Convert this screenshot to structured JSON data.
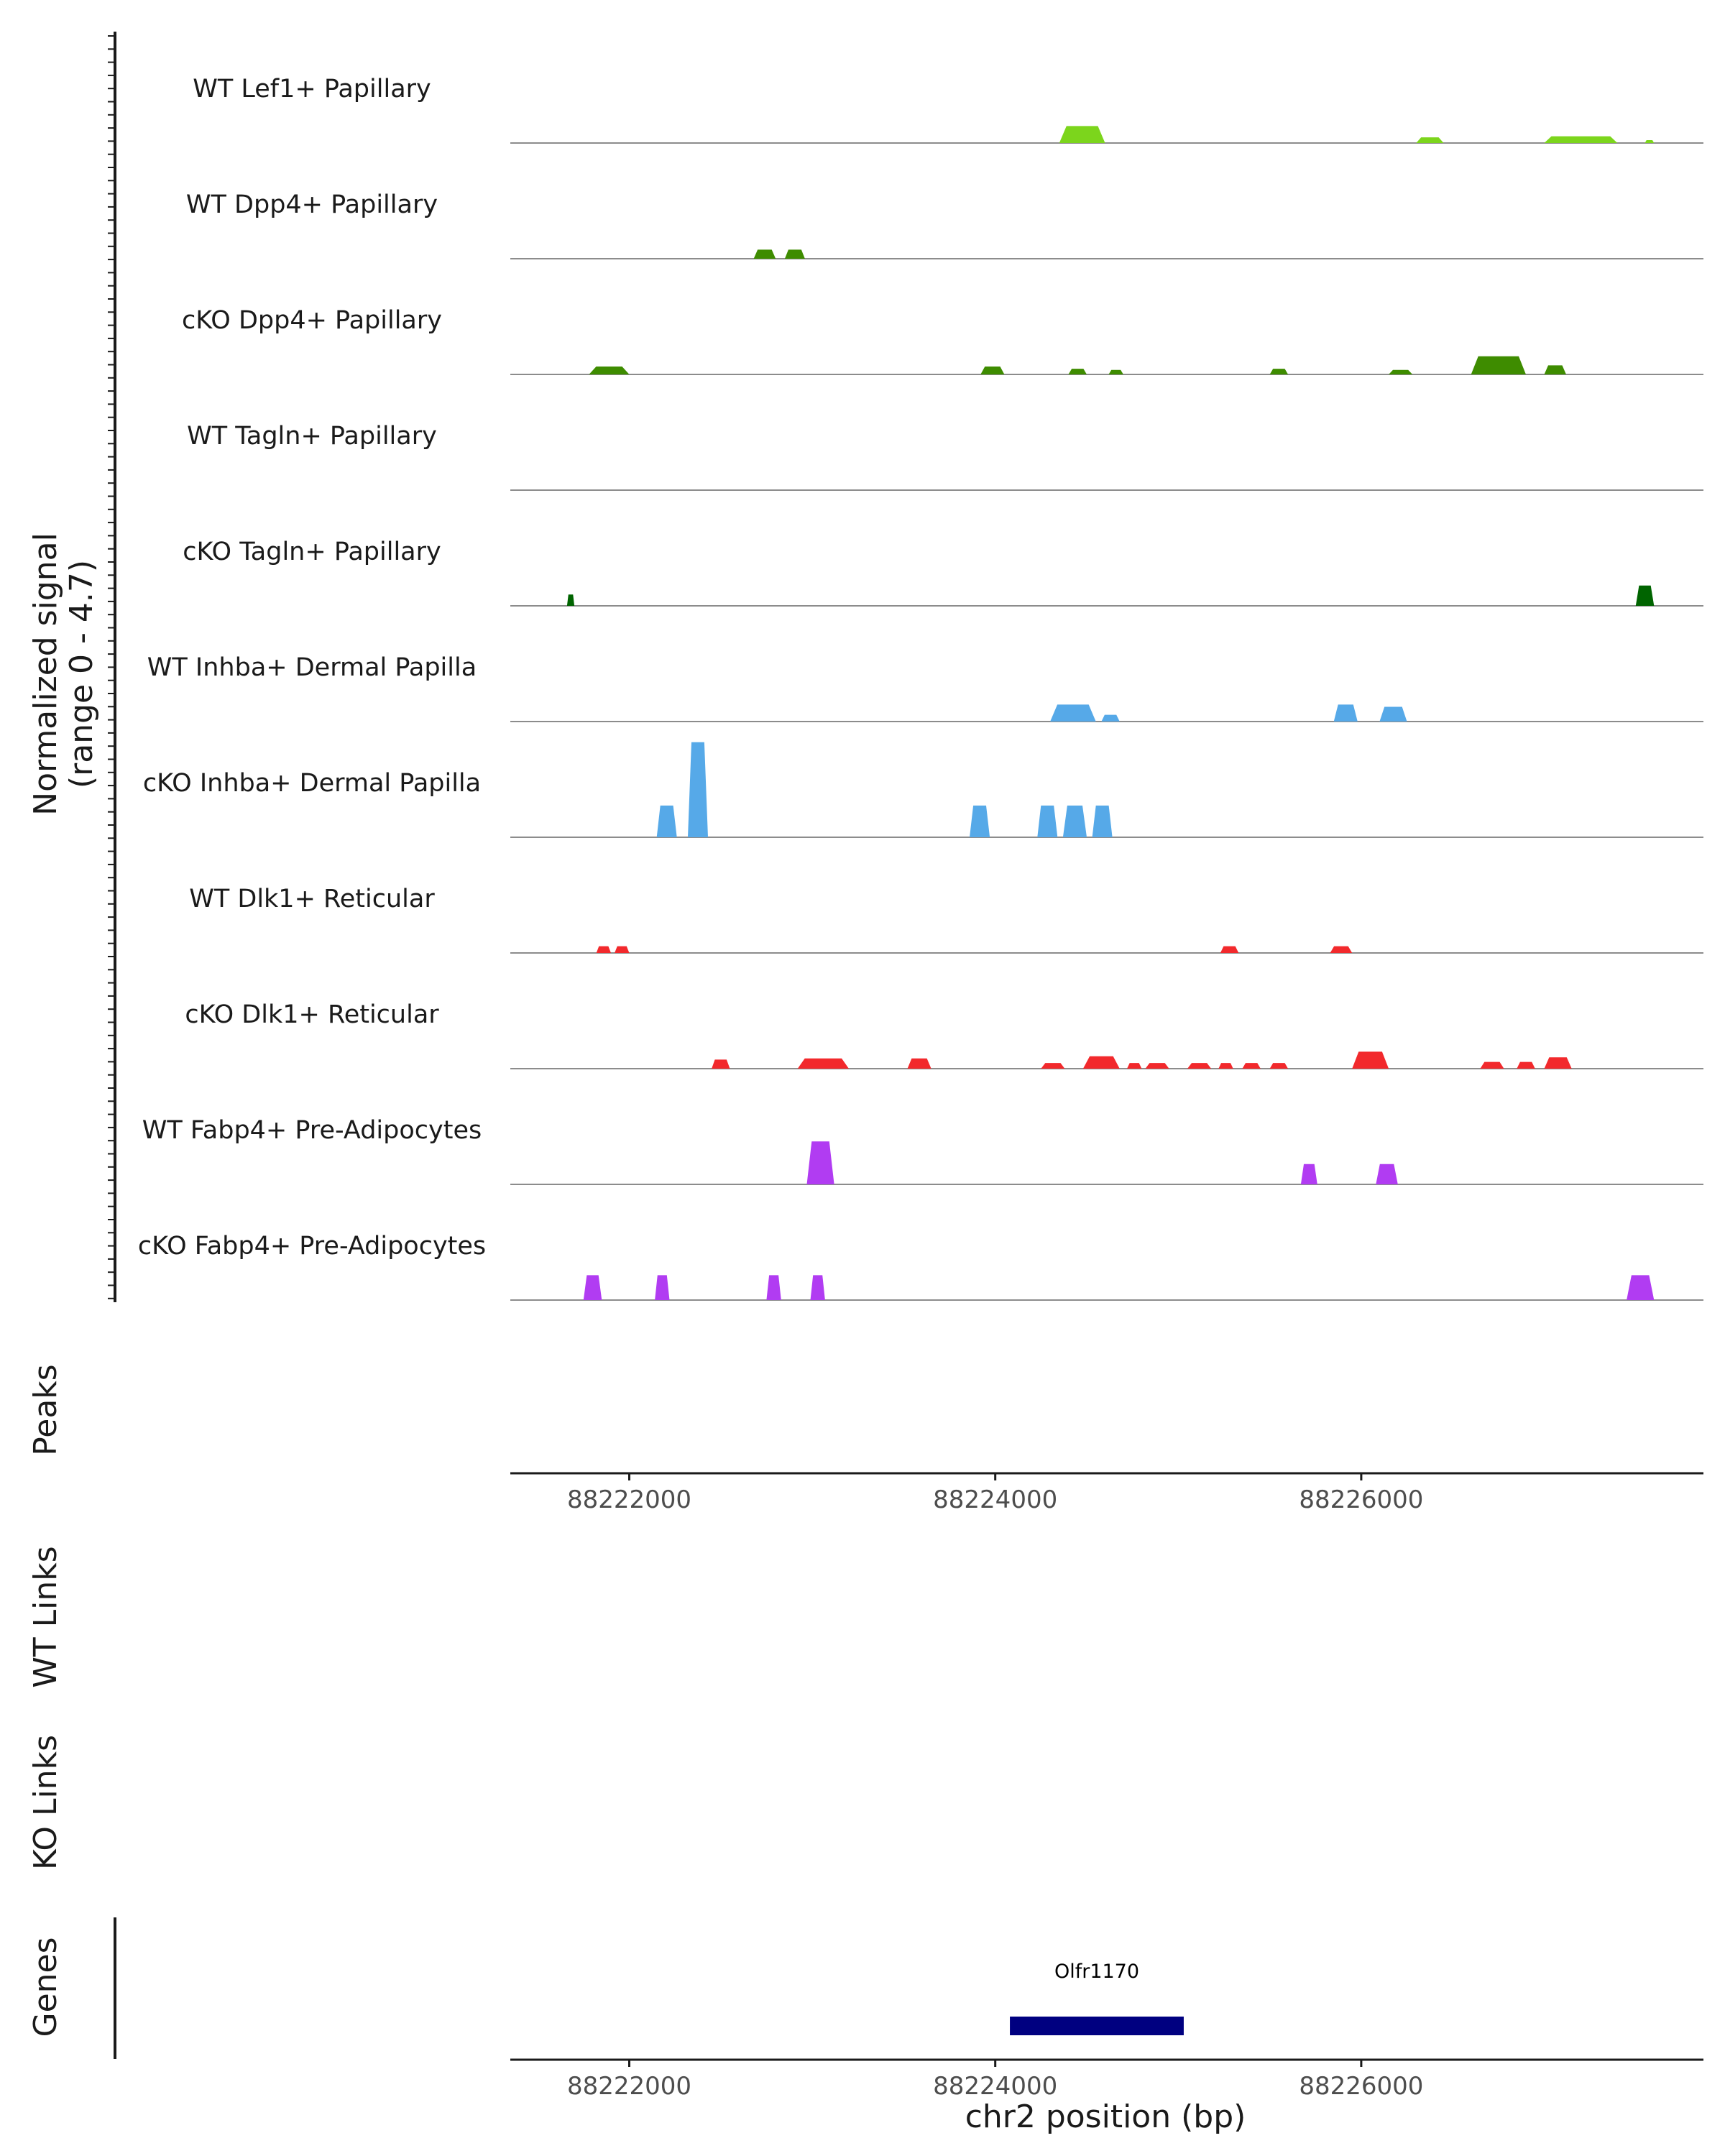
{
  "chart_data": {
    "type": "area",
    "chromosome": "chr2",
    "xlim": [
      88221350,
      88227870
    ],
    "ylim": [
      0,
      4.7
    ],
    "signal_axis_label": [
      "Normalized signal",
      "(range 0 - 4.7)"
    ],
    "x_ticks": [
      88222000,
      88224000,
      88226000
    ],
    "x_tick_labels": [
      "88222000",
      "88224000",
      "88226000"
    ],
    "xlabel": "chr2 position (bp)",
    "tracks": [
      {
        "name": "WT Lef1+ Papillary",
        "color": "#7cd51c",
        "peaks": [
          {
            "start": 88224350,
            "end": 88224600,
            "height": 0.75
          },
          {
            "start": 88226300,
            "end": 88226450,
            "height": 0.25
          },
          {
            "start": 88227000,
            "end": 88227400,
            "height": 0.3
          },
          {
            "start": 88227550,
            "end": 88227600,
            "height": 0.1
          }
        ]
      },
      {
        "name": "WT Dpp4+ Papillary",
        "color": "#3e8c00",
        "peaks": [
          {
            "start": 88222680,
            "end": 88222800,
            "height": 0.4
          },
          {
            "start": 88222850,
            "end": 88222960,
            "height": 0.4
          }
        ]
      },
      {
        "name": "cKO Dpp4+ Papillary",
        "color": "#3e8c00",
        "peaks": [
          {
            "start": 88221780,
            "end": 88222000,
            "height": 0.35
          },
          {
            "start": 88223920,
            "end": 88224050,
            "height": 0.35
          },
          {
            "start": 88224400,
            "end": 88224500,
            "height": 0.25
          },
          {
            "start": 88224620,
            "end": 88224700,
            "height": 0.2
          },
          {
            "start": 88225500,
            "end": 88225600,
            "height": 0.25
          },
          {
            "start": 88226150,
            "end": 88226280,
            "height": 0.2
          },
          {
            "start": 88226600,
            "end": 88226900,
            "height": 0.8
          },
          {
            "start": 88227000,
            "end": 88227120,
            "height": 0.4
          }
        ]
      },
      {
        "name": "WT Tagln+ Papillary",
        "color": "#006400",
        "peaks": []
      },
      {
        "name": "cKO Tagln+ Papillary",
        "color": "#006400",
        "peaks": [
          {
            "start": 88221660,
            "end": 88221700,
            "height": 0.5
          },
          {
            "start": 88227500,
            "end": 88227600,
            "height": 0.9
          }
        ]
      },
      {
        "name": "WT Inhba+ Dermal Papilla",
        "color": "#56a9e8",
        "peaks": [
          {
            "start": 88224300,
            "end": 88224550,
            "height": 0.75
          },
          {
            "start": 88224580,
            "end": 88224680,
            "height": 0.3
          },
          {
            "start": 88225850,
            "end": 88225980,
            "height": 0.75
          },
          {
            "start": 88226100,
            "end": 88226250,
            "height": 0.65
          }
        ]
      },
      {
        "name": "cKO Inhba+ Dermal Papilla",
        "color": "#56a9e8",
        "peaks": [
          {
            "start": 88222150,
            "end": 88222260,
            "height": 1.4
          },
          {
            "start": 88222320,
            "end": 88222430,
            "height": 4.2
          },
          {
            "start": 88223860,
            "end": 88223970,
            "height": 1.4
          },
          {
            "start": 88224230,
            "end": 88224340,
            "height": 1.4
          },
          {
            "start": 88224370,
            "end": 88224500,
            "height": 1.4
          },
          {
            "start": 88224530,
            "end": 88224640,
            "height": 1.4
          }
        ]
      },
      {
        "name": "WT Dlk1+ Reticular",
        "color": "#f2292c",
        "peaks": [
          {
            "start": 88221820,
            "end": 88221900,
            "height": 0.3
          },
          {
            "start": 88221920,
            "end": 88222000,
            "height": 0.3
          },
          {
            "start": 88225230,
            "end": 88225330,
            "height": 0.3
          },
          {
            "start": 88225830,
            "end": 88225950,
            "height": 0.3
          }
        ]
      },
      {
        "name": "cKO Dlk1+ Reticular",
        "color": "#f2292c",
        "peaks": [
          {
            "start": 88222450,
            "end": 88222550,
            "height": 0.4
          },
          {
            "start": 88222920,
            "end": 88223200,
            "height": 0.45
          },
          {
            "start": 88223520,
            "end": 88223650,
            "height": 0.45
          },
          {
            "start": 88224250,
            "end": 88224380,
            "height": 0.25
          },
          {
            "start": 88224480,
            "end": 88224680,
            "height": 0.55
          },
          {
            "start": 88224720,
            "end": 88224800,
            "height": 0.25
          },
          {
            "start": 88224820,
            "end": 88224950,
            "height": 0.25
          },
          {
            "start": 88225050,
            "end": 88225180,
            "height": 0.25
          },
          {
            "start": 88225220,
            "end": 88225300,
            "height": 0.25
          },
          {
            "start": 88225350,
            "end": 88225450,
            "height": 0.25
          },
          {
            "start": 88225500,
            "end": 88225600,
            "height": 0.25
          },
          {
            "start": 88225950,
            "end": 88226150,
            "height": 0.75
          },
          {
            "start": 88226650,
            "end": 88226780,
            "height": 0.3
          },
          {
            "start": 88226850,
            "end": 88226950,
            "height": 0.3
          },
          {
            "start": 88227000,
            "end": 88227150,
            "height": 0.5
          }
        ]
      },
      {
        "name": "WT Fabp4+ Pre-Adipocytes",
        "color": "#b13cf2",
        "peaks": [
          {
            "start": 88222970,
            "end": 88223120,
            "height": 1.9
          },
          {
            "start": 88225670,
            "end": 88225760,
            "height": 0.9
          },
          {
            "start": 88226080,
            "end": 88226200,
            "height": 0.9
          }
        ]
      },
      {
        "name": "cKO Fabp4+ Pre-Adipocytes",
        "color": "#b13cf2",
        "peaks": [
          {
            "start": 88221750,
            "end": 88221850,
            "height": 1.1
          },
          {
            "start": 88222140,
            "end": 88222220,
            "height": 1.1
          },
          {
            "start": 88222750,
            "end": 88222830,
            "height": 1.1
          },
          {
            "start": 88222990,
            "end": 88223070,
            "height": 1.1
          },
          {
            "start": 88227450,
            "end": 88227600,
            "height": 1.1
          }
        ]
      }
    ],
    "peaks_track_label": "Peaks",
    "links_tracks": [
      "WT Links",
      "KO Links"
    ],
    "genes_track_label": "Genes",
    "genes": [
      {
        "name": "Olfr1170",
        "start": 88224080,
        "end": 88225030,
        "color": "#000080"
      }
    ]
  }
}
